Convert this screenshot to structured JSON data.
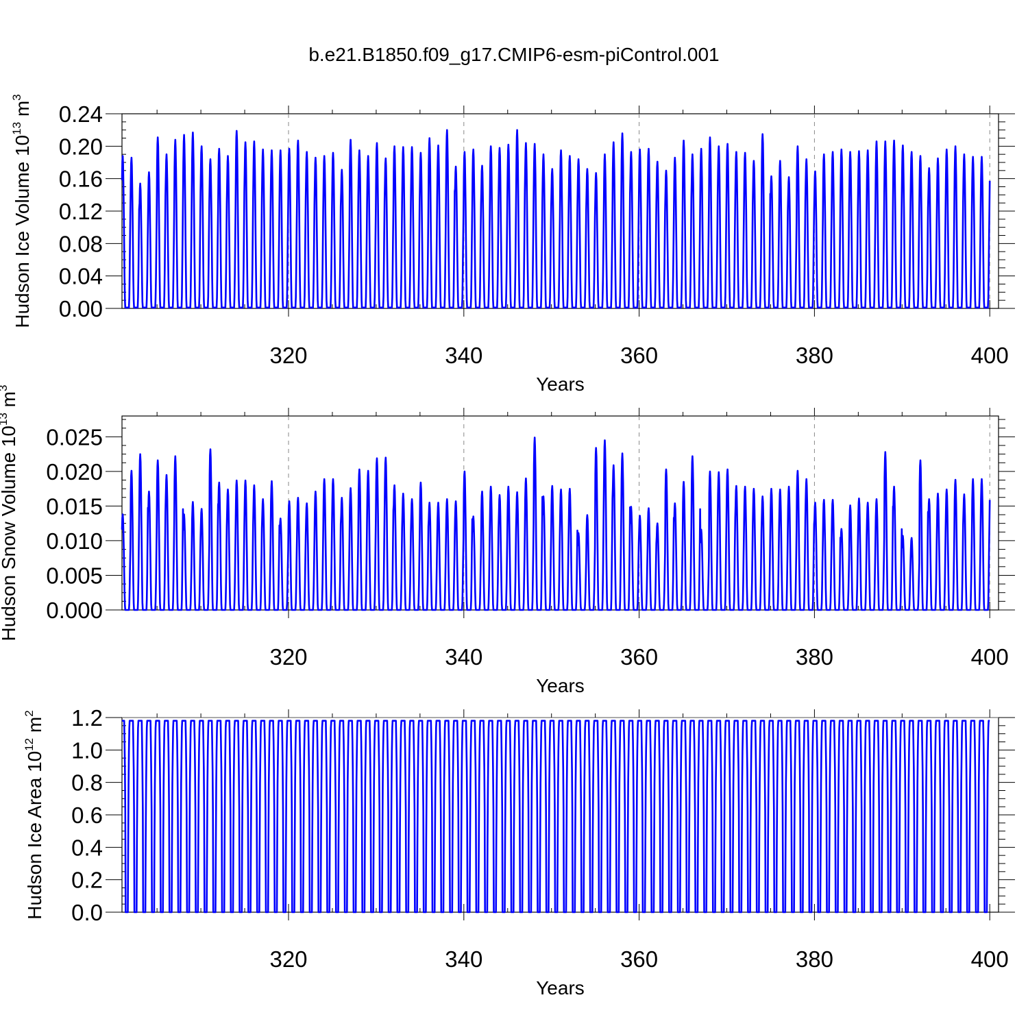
{
  "title": "b.e21.B1850.f09_g17.CMIP6-esm-piControl.001",
  "colors": {
    "series": "#0000ff",
    "axis": "#000000",
    "grid": "#888888"
  },
  "chart_data": [
    {
      "type": "line",
      "title": "",
      "xlabel": "Years",
      "ylabel": {
        "text": "Hudson Ice Volume 10",
        "exp": "13",
        "unit": " m",
        "unit_exp": "3"
      },
      "x_range": [
        301,
        400
      ],
      "ylim": [
        0,
        0.24
      ],
      "x_ticks": [
        320,
        340,
        360,
        380,
        400
      ],
      "x_tick_labels": [
        "320",
        "340",
        "360",
        "380",
        "400"
      ],
      "y_ticks": [
        0,
        0.04,
        0.08,
        0.12,
        0.16,
        0.2,
        0.24
      ],
      "y_tick_labels": [
        "0.00",
        "0.04",
        "0.08",
        "0.12",
        "0.16",
        "0.20",
        "0.24"
      ],
      "grid": "dashed vertical lines at major x ticks",
      "series": [
        {
          "x_start": 301,
          "x_end": 400,
          "annual_minima_approx": 0.001,
          "annual_maxima": [
            0.188,
            0.186,
            0.154,
            0.168,
            0.211,
            0.19,
            0.208,
            0.214,
            0.217,
            0.2,
            0.184,
            0.197,
            0.188,
            0.219,
            0.205,
            0.206,
            0.196,
            0.195,
            0.195,
            0.197,
            0.207,
            0.193,
            0.186,
            0.188,
            0.192,
            0.171,
            0.208,
            0.195,
            0.188,
            0.204,
            0.185,
            0.2,
            0.199,
            0.199,
            0.192,
            0.21,
            0.201,
            0.22,
            0.175,
            0.193,
            0.196,
            0.176,
            0.2,
            0.198,
            0.202,
            0.22,
            0.204,
            0.203,
            0.19,
            0.172,
            0.195,
            0.188,
            0.184,
            0.172,
            0.167,
            0.19,
            0.205,
            0.216,
            0.193,
            0.196,
            0.197,
            0.181,
            0.17,
            0.186,
            0.207,
            0.19,
            0.197,
            0.211,
            0.2,
            0.203,
            0.193,
            0.192,
            0.182,
            0.215,
            0.163,
            0.182,
            0.162,
            0.2,
            0.184,
            0.169,
            0.19,
            0.193,
            0.196,
            0.193,
            0.194,
            0.195,
            0.206,
            0.206,
            0.207,
            0.201,
            0.193,
            0.188,
            0.173,
            0.185,
            0.196,
            0.2,
            0.19,
            0.187
          ]
        }
      ]
    },
    {
      "type": "line",
      "title": "",
      "xlabel": "Years",
      "ylabel": {
        "text": "Hudson Snow Volume 10",
        "exp": "13",
        "unit": " m",
        "unit_exp": "3"
      },
      "x_range": [
        301,
        400
      ],
      "ylim": [
        0,
        0.028
      ],
      "x_ticks": [
        320,
        340,
        360,
        380,
        400
      ],
      "x_tick_labels": [
        "320",
        "340",
        "360",
        "380",
        "400"
      ],
      "y_ticks": [
        0,
        0.005,
        0.01,
        0.015,
        0.02,
        0.025
      ],
      "y_tick_labels": [
        "0.000",
        "0.005",
        "0.010",
        "0.015",
        "0.020",
        "0.025"
      ],
      "grid": "dashed vertical lines at major x ticks",
      "series": [
        {
          "x_start": 301,
          "x_end": 400,
          "annual_minima_approx": 0.0,
          "annual_maxima": [
            0.0138,
            0.0201,
            0.0225,
            0.0171,
            0.0216,
            0.0195,
            0.0222,
            0.0138,
            0.0156,
            0.0146,
            0.0232,
            0.0184,
            0.0174,
            0.0187,
            0.0187,
            0.018,
            0.016,
            0.0186,
            0.0132,
            0.0157,
            0.0162,
            0.0154,
            0.0171,
            0.0189,
            0.0189,
            0.0162,
            0.0176,
            0.0203,
            0.0201,
            0.0219,
            0.022,
            0.018,
            0.0168,
            0.016,
            0.0184,
            0.0155,
            0.0155,
            0.016,
            0.0157,
            0.02,
            0.0135,
            0.0171,
            0.0178,
            0.0166,
            0.0178,
            0.017,
            0.019,
            0.0249,
            0.0164,
            0.0179,
            0.0174,
            0.0175,
            0.0111,
            0.0137,
            0.0234,
            0.0245,
            0.0209,
            0.0226,
            0.0149,
            0.0136,
            0.0147,
            0.0125,
            0.0203,
            0.0154,
            0.0185,
            0.0222,
            0.0116,
            0.02,
            0.0199,
            0.0203,
            0.0179,
            0.0178,
            0.0175,
            0.0164,
            0.0175,
            0.0174,
            0.0178,
            0.0201,
            0.0189,
            0.0155,
            0.0159,
            0.0159,
            0.0117,
            0.0151,
            0.0161,
            0.0155,
            0.016,
            0.0228,
            0.0178,
            0.0107,
            0.0104,
            0.0216,
            0.016,
            0.0168,
            0.0174,
            0.0188,
            0.0167,
            0.0189
          ]
        }
      ]
    },
    {
      "type": "line",
      "title": "",
      "xlabel": "Years",
      "ylabel": {
        "text": "Hudson Ice Area 10",
        "exp": "12",
        "unit": " m",
        "unit_exp": "2"
      },
      "x_range": [
        301,
        400
      ],
      "ylim": [
        0,
        1.2
      ],
      "x_ticks": [
        320,
        340,
        360,
        380,
        400
      ],
      "x_tick_labels": [
        "320",
        "340",
        "360",
        "380",
        "400"
      ],
      "y_ticks": [
        0,
        0.2,
        0.4,
        0.6,
        0.8,
        1.0,
        1.2
      ],
      "y_tick_labels": [
        "0.0",
        "0.2",
        "0.4",
        "0.6",
        "0.8",
        "1.0",
        "1.2"
      ],
      "grid": "horizontal line at 1.2",
      "series": [
        {
          "x_start": 301,
          "x_end": 400,
          "annual_maximum": 1.18,
          "annual_minima_approx": 0.0
        }
      ]
    }
  ]
}
